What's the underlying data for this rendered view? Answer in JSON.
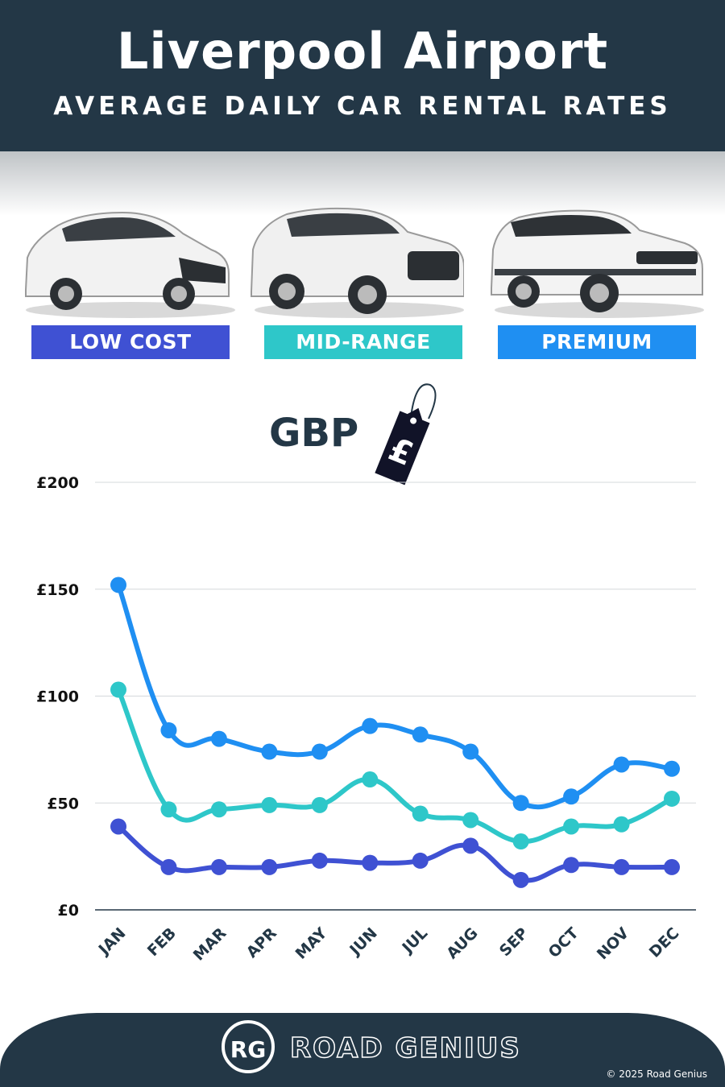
{
  "header": {
    "title": "Liverpool Airport",
    "subtitle": "AVERAGE DAILY CAR RENTAL RATES"
  },
  "categories": [
    {
      "label": "LOW COST",
      "color": "#3f51d3",
      "icon": "hatchback-car-icon"
    },
    {
      "label": "MID-RANGE",
      "color": "#2ec7c9",
      "icon": "suv-car-icon"
    },
    {
      "label": "PREMIUM",
      "color": "#1f8ff2",
      "icon": "luxury-suv-car-icon"
    }
  ],
  "currency": {
    "label": "GBP",
    "symbol": "£",
    "icon": "price-tag-icon"
  },
  "chart_data": {
    "type": "line",
    "x": [
      "JAN",
      "FEB",
      "MAR",
      "APR",
      "MAY",
      "JUN",
      "JUL",
      "AUG",
      "SEP",
      "OCT",
      "NOV",
      "DEC"
    ],
    "ylim": [
      0,
      200
    ],
    "yticks": [
      0,
      50,
      100,
      150,
      200
    ],
    "ytick_labels": [
      "£0",
      "£50",
      "£100",
      "£150",
      "£200"
    ],
    "grid": true,
    "series": [
      {
        "name": "PREMIUM",
        "color": "#1f8ff2",
        "values": [
          152,
          84,
          80,
          74,
          74,
          86,
          82,
          74,
          50,
          53,
          68,
          66
        ]
      },
      {
        "name": "MID-RANGE",
        "color": "#2ec7c9",
        "values": [
          103,
          47,
          47,
          49,
          49,
          61,
          45,
          42,
          32,
          39,
          40,
          52
        ]
      },
      {
        "name": "LOW COST",
        "color": "#3f51d3",
        "values": [
          39,
          20,
          20,
          20,
          23,
          22,
          23,
          30,
          14,
          21,
          20,
          20
        ]
      }
    ]
  },
  "footer": {
    "logo_initials": "RG",
    "brand": "ROAD GENIUS",
    "copyright": "© 2025 Road Genius"
  }
}
